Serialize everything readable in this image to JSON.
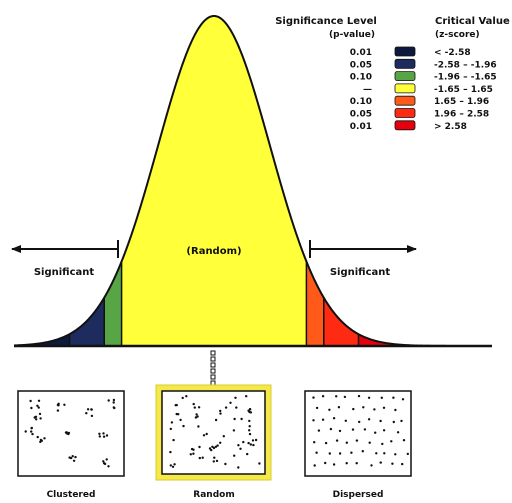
{
  "legend": {
    "col1_header": [
      "Significance Level",
      "(p-value)"
    ],
    "col2_header": [
      "Critical Value",
      "(z-score)"
    ],
    "rows": [
      {
        "p": "0.01",
        "z": "< -2.58",
        "color": "#0d1a3d"
      },
      {
        "p": "0.05",
        "z": "-2.58 – -1.96",
        "color": "#1d2b5e"
      },
      {
        "p": "0.10",
        "z": "-1.96 – -1.65",
        "color": "#58a545"
      },
      {
        "p": "—",
        "z": "-1.65 – 1.65",
        "color": "#ffff3a"
      },
      {
        "p": "0.10",
        "z": "1.65 – 1.96",
        "color": "#ff5a1a"
      },
      {
        "p": "0.05",
        "z": "1.96 – 2.58",
        "color": "#ff2a12"
      },
      {
        "p": "0.01",
        "z": "> 2.58",
        "color": "#e6000e"
      }
    ]
  },
  "labels": {
    "significant_left": "Significant",
    "significant_right": "Significant",
    "random_center": "(Random)"
  },
  "patterns": [
    {
      "label": "Clustered",
      "kind": "clustered",
      "highlighted": false
    },
    {
      "label": "Random",
      "kind": "random",
      "highlighted": true
    },
    {
      "label": "Dispersed",
      "kind": "dispersed",
      "highlighted": false
    }
  ],
  "colors": {
    "curve_line": "#111111",
    "highlight_border": "#e6d93a"
  }
}
